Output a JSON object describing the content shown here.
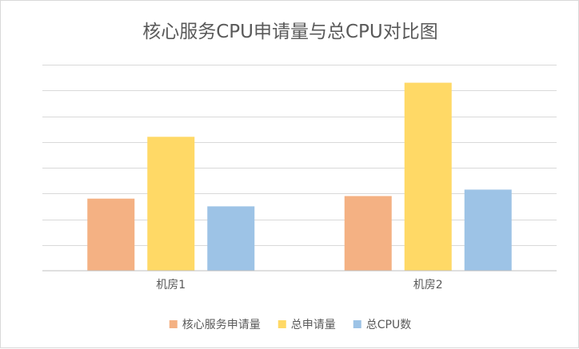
{
  "chart_data": {
    "type": "bar",
    "title": "核心服务CPU申请量与总CPU对比图",
    "categories": [
      "机房1",
      "机房2"
    ],
    "series": [
      {
        "name": "核心服务申请量",
        "color": "#f4b183",
        "values": [
          2.8,
          2.9
        ]
      },
      {
        "name": "总申请量",
        "color": "#ffd966",
        "values": [
          5.2,
          7.3
        ]
      },
      {
        "name": "总CPU数",
        "color": "#9dc3e6",
        "values": [
          2.5,
          3.15
        ]
      }
    ],
    "ylim": [
      0,
      8
    ],
    "gridline_step": 1,
    "grid": true,
    "y_tick_labels_shown": false,
    "legend": "bottom"
  }
}
